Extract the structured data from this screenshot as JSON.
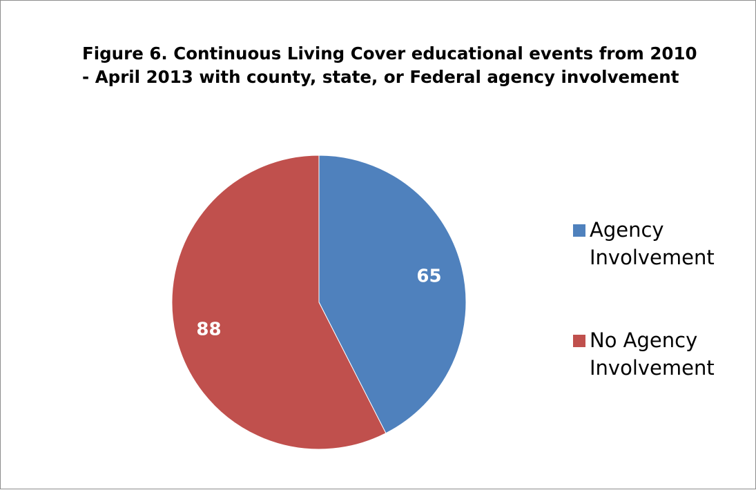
{
  "chart_data": {
    "type": "pie",
    "title_lines": [
      "Figure 6.  Continuous Living Cover educational events from 2010",
      "- April 2013 with county, state, or Federal agency involvement"
    ],
    "categories": [
      "Agency Involvement",
      "No Agency Involvement"
    ],
    "values": [
      65,
      88
    ],
    "data_labels": [
      "65",
      "88"
    ],
    "colors": [
      "#4f81bd",
      "#c0504d"
    ],
    "legend": {
      "placement": "right",
      "entries": [
        {
          "lines": [
            "Agency",
            "Involvement"
          ]
        },
        {
          "lines": [
            "No Agency",
            "Involvement"
          ]
        }
      ]
    },
    "start_angle": "12 o'clock",
    "direction": "clockwise"
  }
}
